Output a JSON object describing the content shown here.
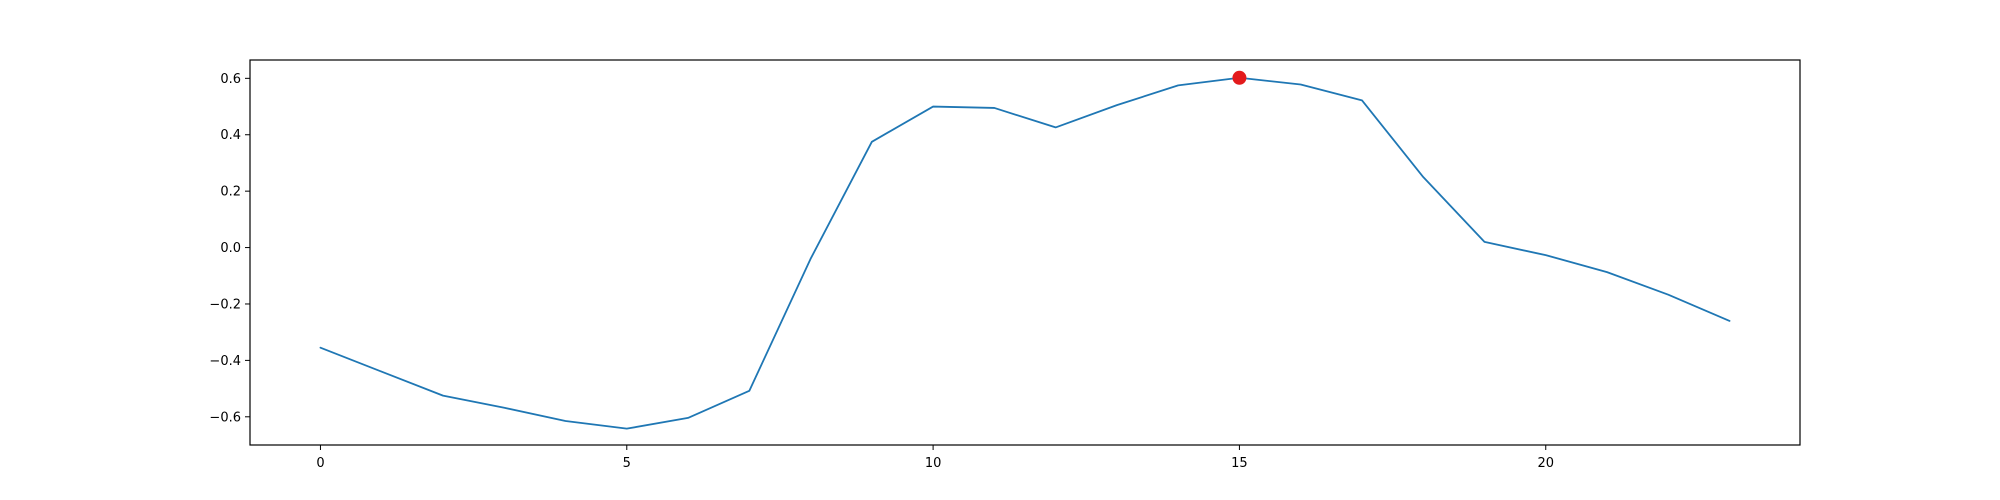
{
  "chart_data": {
    "type": "line",
    "title": "",
    "xlabel": "",
    "ylabel": "",
    "xlim": [
      -1.15,
      24.15
    ],
    "ylim": [
      -0.7,
      0.665
    ],
    "grid": false,
    "x_ticks": [
      0,
      5,
      10,
      15,
      20
    ],
    "x_tick_labels": [
      "0",
      "5",
      "10",
      "15",
      "20"
    ],
    "y_ticks": [
      -0.6,
      -0.4,
      -0.2,
      0.0,
      0.2,
      0.4,
      0.6
    ],
    "y_tick_labels": [
      "−0.6",
      "−0.4",
      "−0.2",
      "0.0",
      "0.2",
      "0.4",
      "0.6"
    ],
    "series": [
      {
        "color": "#1f77b4",
        "x": [
          0,
          1,
          2,
          3,
          4,
          5,
          6,
          7,
          8,
          9,
          10,
          11,
          12,
          13,
          14,
          15,
          16,
          17,
          18,
          19,
          20,
          21,
          22,
          23
        ],
        "y": [
          -0.355,
          -0.44,
          -0.525,
          -0.568,
          -0.615,
          -0.642,
          -0.604,
          -0.508,
          -0.04,
          0.375,
          0.5,
          0.495,
          0.426,
          0.505,
          0.575,
          0.602,
          0.578,
          0.522,
          0.25,
          0.02,
          -0.027,
          -0.087,
          -0.167,
          -0.26
        ]
      }
    ],
    "highlight_point": {
      "x": 15,
      "y": 0.602,
      "color": "#e31a1c"
    }
  }
}
